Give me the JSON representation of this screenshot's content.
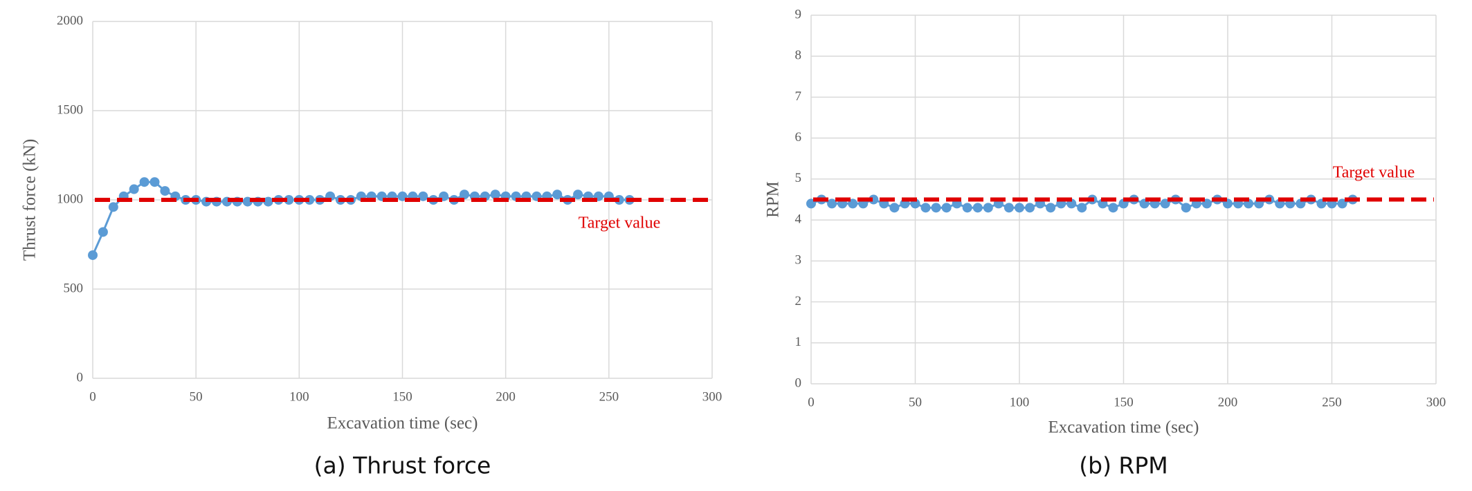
{
  "chart_data": [
    {
      "type": "line",
      "caption": "(a) Thrust force",
      "x_label": "Excavation time (sec)",
      "y_label": "Thrust force (kN)",
      "xlim": [
        0,
        300
      ],
      "xticks": [
        0,
        50,
        100,
        150,
        200,
        250,
        300
      ],
      "ylim": [
        0,
        2000
      ],
      "yticks": [
        0,
        500,
        1000,
        1500,
        2000
      ],
      "grid": true,
      "x": [
        0,
        5,
        10,
        15,
        20,
        25,
        30,
        35,
        40,
        45,
        50,
        55,
        60,
        65,
        70,
        75,
        80,
        85,
        90,
        95,
        100,
        105,
        110,
        115,
        120,
        125,
        130,
        135,
        140,
        145,
        150,
        155,
        160,
        165,
        170,
        175,
        180,
        185,
        190,
        195,
        200,
        205,
        210,
        215,
        220,
        225,
        230,
        235,
        240,
        245,
        250,
        255,
        260
      ],
      "series": [
        {
          "color": "#5b9bd5",
          "values": [
            690,
            820,
            960,
            1020,
            1060,
            1100,
            1100,
            1050,
            1020,
            1000,
            1000,
            990,
            990,
            990,
            990,
            990,
            990,
            990,
            1000,
            1000,
            1000,
            1000,
            1000,
            1020,
            1000,
            1000,
            1020,
            1020,
            1020,
            1020,
            1020,
            1020,
            1020,
            1000,
            1020,
            1000,
            1030,
            1020,
            1020,
            1030,
            1020,
            1020,
            1020,
            1020,
            1020,
            1030,
            1000,
            1030,
            1020,
            1020,
            1020,
            1000,
            1000
          ]
        }
      ],
      "reference": {
        "value": 1000,
        "label": "Target value",
        "color": "#e00000"
      }
    },
    {
      "type": "line",
      "caption": "(b) RPM",
      "x_label": "Excavation time (sec)",
      "y_label": "RPM",
      "xlim": [
        0,
        300
      ],
      "xticks": [
        0,
        50,
        100,
        150,
        200,
        250,
        300
      ],
      "ylim": [
        0,
        9
      ],
      "yticks": [
        0,
        1,
        2,
        3,
        4,
        5,
        6,
        7,
        8,
        9
      ],
      "grid": true,
      "x": [
        0,
        5,
        10,
        15,
        20,
        25,
        30,
        35,
        40,
        45,
        50,
        55,
        60,
        65,
        70,
        75,
        80,
        85,
        90,
        95,
        100,
        105,
        110,
        115,
        120,
        125,
        130,
        135,
        140,
        145,
        150,
        155,
        160,
        165,
        170,
        175,
        180,
        185,
        190,
        195,
        200,
        205,
        210,
        215,
        220,
        225,
        230,
        235,
        240,
        245,
        250,
        255,
        260
      ],
      "series": [
        {
          "color": "#5b9bd5",
          "values": [
            4.4,
            4.5,
            4.4,
            4.4,
            4.4,
            4.4,
            4.5,
            4.4,
            4.3,
            4.4,
            4.4,
            4.3,
            4.3,
            4.3,
            4.4,
            4.3,
            4.3,
            4.3,
            4.4,
            4.3,
            4.3,
            4.3,
            4.4,
            4.3,
            4.4,
            4.4,
            4.3,
            4.5,
            4.4,
            4.3,
            4.4,
            4.5,
            4.4,
            4.4,
            4.4,
            4.5,
            4.3,
            4.4,
            4.4,
            4.5,
            4.4,
            4.4,
            4.4,
            4.4,
            4.5,
            4.4,
            4.4,
            4.4,
            4.5,
            4.4,
            4.4,
            4.4,
            4.5
          ]
        }
      ],
      "reference": {
        "value": 4.5,
        "label": "Target value",
        "color": "#e00000"
      }
    }
  ]
}
